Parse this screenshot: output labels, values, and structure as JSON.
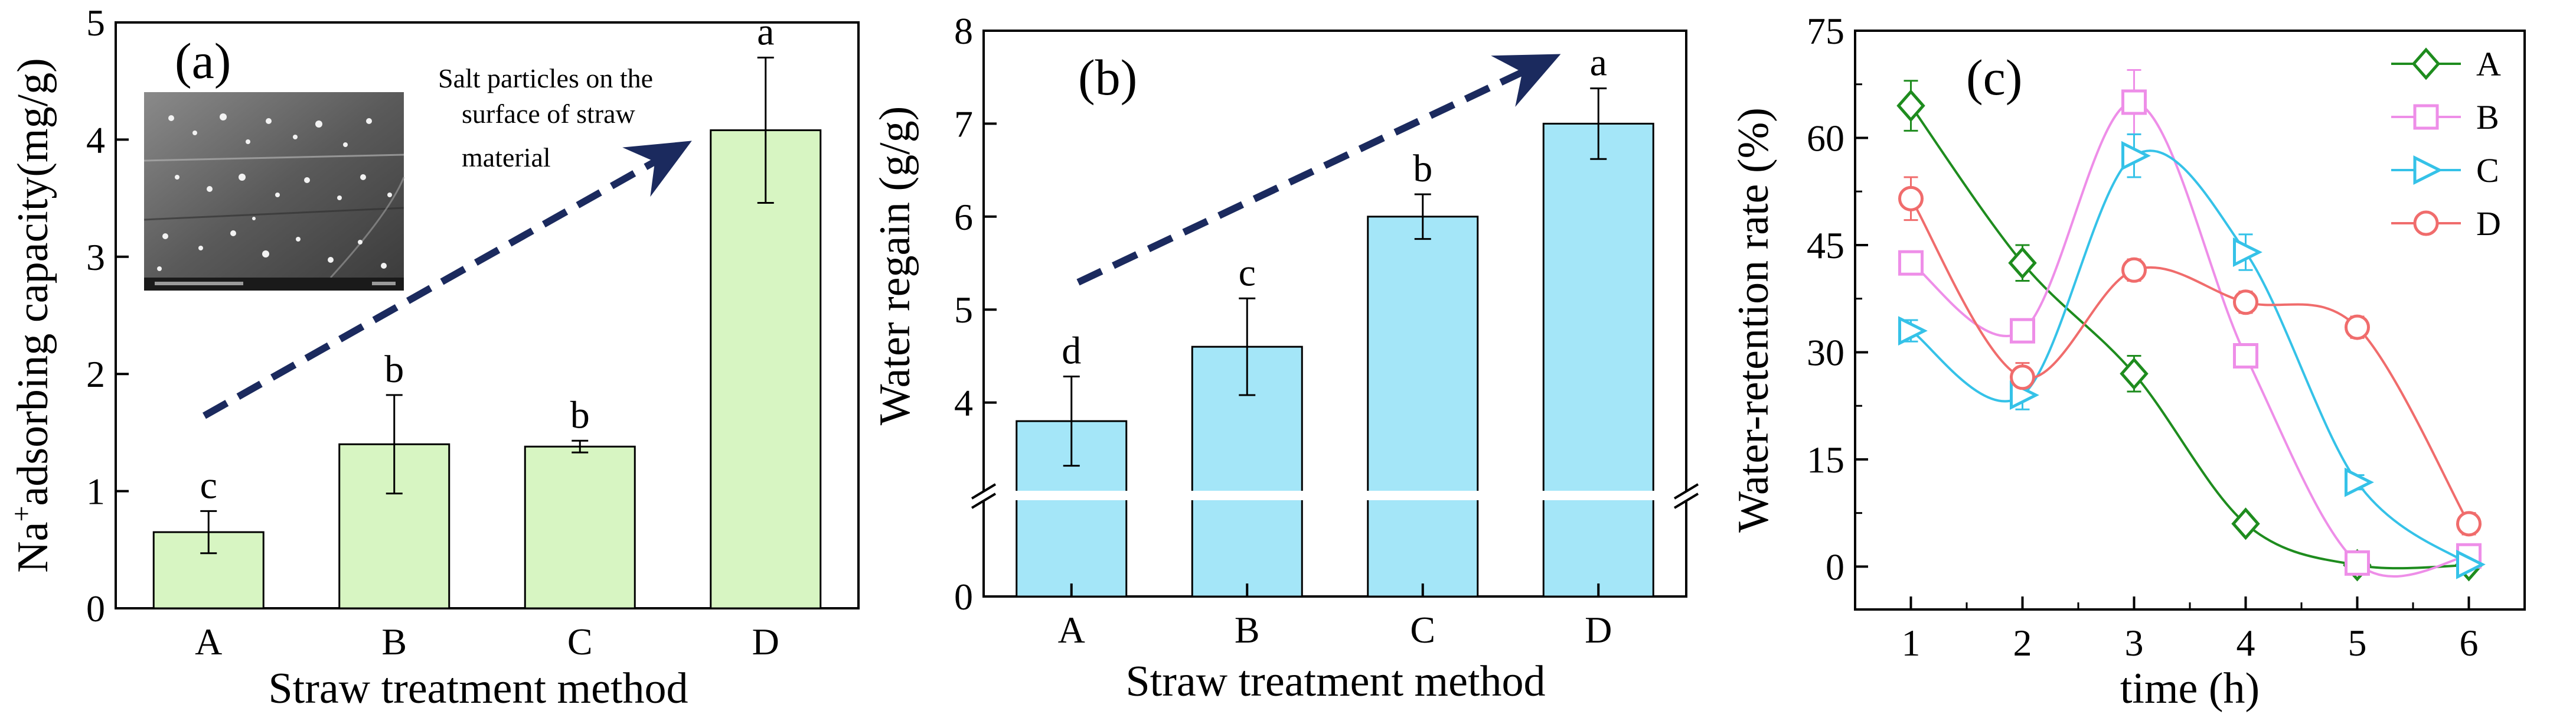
{
  "chart_data": [
    {
      "type": "bar",
      "panel_label": "(a)",
      "categories": [
        "A",
        "B",
        "C",
        "D"
      ],
      "values": [
        0.65,
        1.4,
        1.38,
        4.08
      ],
      "errors": [
        0.18,
        0.42,
        0.05,
        0.62
      ],
      "significance": [
        "c",
        "b",
        "b",
        "a"
      ],
      "bar_color": "#d7f5c2",
      "xlabel": "Straw treatment method",
      "ylabel_prefix": "Na",
      "ylabel_sup": "+",
      "ylabel_suffix": "adsorbing capacity(mg/g)",
      "ylim": [
        0,
        5
      ],
      "yticks": [
        0,
        1,
        2,
        3,
        4,
        5
      ],
      "annotation": [
        "Salt particles on the",
        "surface of straw",
        "material"
      ],
      "inset": "SEM image of salt particles on the straw surface",
      "trend_arrow_color": "#1b2a5e"
    },
    {
      "type": "bar",
      "panel_label": "(b)",
      "categories": [
        "A",
        "B",
        "C",
        "D"
      ],
      "values": [
        3.8,
        4.6,
        6.0,
        7.0
      ],
      "errors": [
        0.48,
        0.52,
        0.24,
        0.38
      ],
      "significance": [
        "d",
        "c",
        "b",
        "a"
      ],
      "bar_color": "#a4e6f8",
      "xlabel": "Straw treatment method",
      "ylabel": "Water regain (g/g)",
      "ylim": [
        0,
        8
      ],
      "axis_break": [
        0.5,
        3.0
      ],
      "yticks": [
        0,
        4,
        5,
        6,
        7,
        8
      ],
      "trend_arrow_color": "#1b2a5e"
    },
    {
      "type": "line",
      "panel_label": "(c)",
      "x": [
        1,
        2,
        3,
        4,
        5,
        6
      ],
      "xlabel": "time (h)",
      "ylabel": "Water-retention rate (%)",
      "xlim": [
        0.5,
        6.5
      ],
      "ylim": [
        -6,
        75
      ],
      "yticks": [
        0,
        15,
        30,
        45,
        60,
        75
      ],
      "legend_position": "top-right",
      "series": [
        {
          "name": "A",
          "marker": "diamond",
          "color": "#1e8c1e",
          "values": [
            64.5,
            42.5,
            27.0,
            6.0,
            0.2,
            0.2
          ],
          "errors": [
            3.5,
            2.5,
            2.5,
            1.0,
            0.5,
            0.5
          ]
        },
        {
          "name": "B",
          "marker": "square",
          "color": "#ee8ee8",
          "values": [
            42.5,
            33.0,
            65.0,
            29.5,
            0.5,
            1.5
          ],
          "errors": [
            1.5,
            1.5,
            4.5,
            1.5,
            1.0,
            0.5
          ]
        },
        {
          "name": "C",
          "marker": "triangle-right",
          "color": "#35c2e8",
          "values": [
            33.0,
            24.0,
            57.5,
            44.0,
            11.8,
            0.3
          ],
          "errors": [
            1.5,
            2.0,
            3.0,
            2.5,
            1.0,
            0.5
          ]
        },
        {
          "name": "D",
          "marker": "circle",
          "color": "#f06c6c",
          "values": [
            51.5,
            26.5,
            41.5,
            37.0,
            33.5,
            6.0
          ],
          "errors": [
            3.0,
            2.0,
            1.5,
            1.5,
            1.5,
            1.5
          ]
        }
      ]
    }
  ]
}
